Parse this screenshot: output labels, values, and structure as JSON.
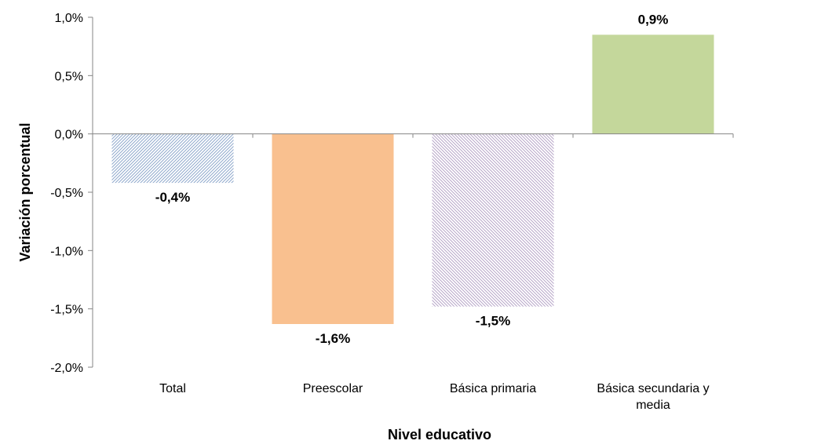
{
  "chart_data": {
    "type": "bar",
    "xlabel": "Nivel educativo",
    "ylabel": "Variación porcentual",
    "ylim": [
      -2.0,
      1.0
    ],
    "yticks": [
      1.0,
      0.5,
      0.0,
      -0.5,
      -1.0,
      -1.5,
      -2.0
    ],
    "ytick_labels": [
      "1,0%",
      "0,5%",
      "0,0%",
      "-0,5%",
      "-1,0%",
      "-1,5%",
      "-2,0%"
    ],
    "categories": [
      "Total",
      "Preescolar",
      "Básica primaria",
      "Básica secundaria y media"
    ],
    "values": [
      -0.42,
      -1.63,
      -1.48,
      0.85
    ],
    "data_labels": [
      "-0,4%",
      "-1,6%",
      "-1,5%",
      "0,9%"
    ],
    "bar_styles": [
      {
        "fill": "#8fa9cc",
        "pattern": "diagonal"
      },
      {
        "fill": "#f9c08f",
        "pattern": "solid"
      },
      {
        "fill": "#b7a6c8",
        "pattern": "diagonal"
      },
      {
        "fill": "#c4d79b",
        "pattern": "solid"
      }
    ],
    "grid": false,
    "legend": "none"
  }
}
